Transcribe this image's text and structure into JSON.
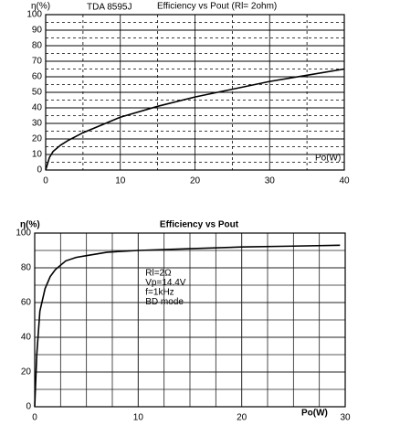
{
  "chart_data": [
    {
      "type": "line",
      "subtitle": "TDA 8595J",
      "title": "Efficiency vs Pout (Rl= 2ohm)",
      "y_label": "η(%)",
      "x_label": "Po(W)",
      "xlim": [
        0,
        40
      ],
      "xticks": [
        0,
        10,
        20,
        30,
        40
      ],
      "x_minor_ticks": [
        5,
        15,
        25,
        35
      ],
      "ylim": [
        0,
        100
      ],
      "yticks": [
        0,
        10,
        20,
        30,
        40,
        50,
        60,
        70,
        80,
        90,
        100
      ],
      "y_minor_ticks": [
        5,
        15,
        25,
        35,
        45,
        55,
        65,
        75,
        85,
        95
      ],
      "grid": true,
      "series": [
        {
          "color": "#000000",
          "x": [
            0,
            0.5,
            1,
            2,
            3,
            5,
            7.5,
            10,
            15,
            20,
            25,
            30,
            35,
            40
          ],
          "values": [
            0,
            8,
            12,
            16,
            19,
            24,
            29,
            34,
            41,
            47,
            52,
            57,
            61,
            65
          ]
        }
      ]
    },
    {
      "type": "line",
      "title": "Efficiency vs Pout",
      "y_label": "η(%)",
      "x_label": "Po(W)",
      "xlim": [
        0,
        30
      ],
      "xticks": [
        0,
        10,
        20,
        30
      ],
      "x_minor_ticks": [
        2.5,
        5,
        7.5,
        12.5,
        15,
        17.5,
        22.5,
        25,
        27.5
      ],
      "ylim": [
        0,
        100
      ],
      "yticks": [
        0,
        20,
        40,
        60,
        80,
        100
      ],
      "y_minor_ticks": [
        10,
        30,
        50,
        70,
        90
      ],
      "grid": true,
      "annotations": [
        "Rl=2Ω",
        "Vp=14.4V",
        "f=1kHz",
        "BD mode"
      ],
      "series": [
        {
          "color": "#000000",
          "x": [
            0,
            0.2,
            0.5,
            1,
            1.5,
            2,
            3,
            4,
            5,
            7,
            10,
            15,
            20,
            25,
            29.5
          ],
          "values": [
            0,
            30,
            55,
            68,
            75,
            79,
            84,
            86,
            87,
            89,
            90,
            91,
            92,
            92.5,
            93
          ]
        }
      ]
    }
  ]
}
